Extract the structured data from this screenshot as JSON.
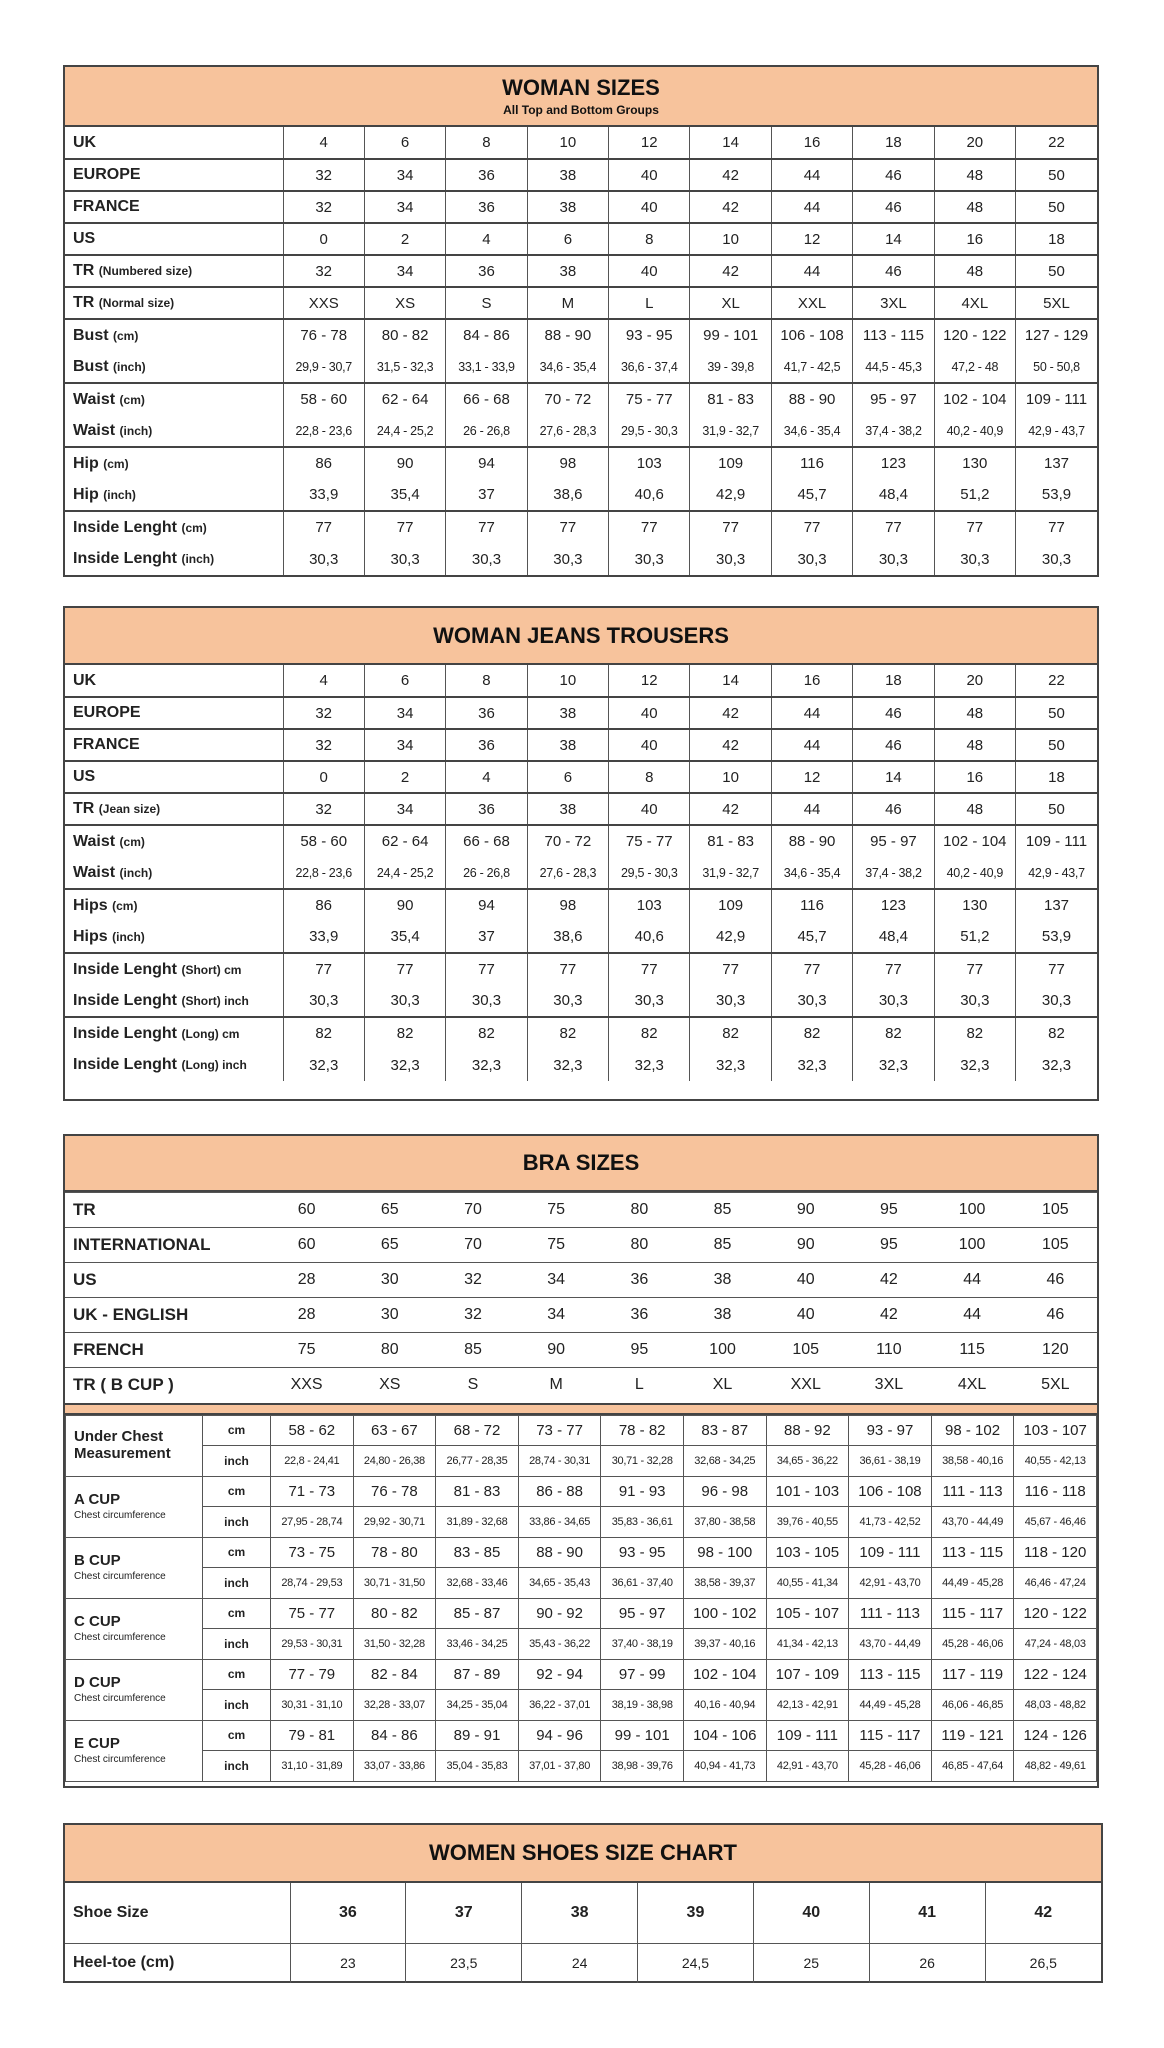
{
  "woman_sizes": {
    "title": "WOMAN SIZES",
    "subtitle": "All Top and Bottom Groups",
    "groups": [
      [
        {
          "label": "UK",
          "unit": "",
          "values": [
            "4",
            "6",
            "8",
            "10",
            "12",
            "14",
            "16",
            "18",
            "20",
            "22"
          ]
        }
      ],
      [
        {
          "label": "EUROPE",
          "unit": "",
          "values": [
            "32",
            "34",
            "36",
            "38",
            "40",
            "42",
            "44",
            "46",
            "48",
            "50"
          ]
        }
      ],
      [
        {
          "label": "FRANCE",
          "unit": "",
          "values": [
            "32",
            "34",
            "36",
            "38",
            "40",
            "42",
            "44",
            "46",
            "48",
            "50"
          ]
        }
      ],
      [
        {
          "label": "US",
          "unit": "",
          "values": [
            "0",
            "2",
            "4",
            "6",
            "8",
            "10",
            "12",
            "14",
            "16",
            "18"
          ]
        }
      ],
      [
        {
          "label": "TR",
          "unit": "(Numbered size)",
          "values": [
            "32",
            "34",
            "36",
            "38",
            "40",
            "42",
            "44",
            "46",
            "48",
            "50"
          ]
        }
      ],
      [
        {
          "label": "TR",
          "unit": "(Normal size)",
          "values": [
            "XXS",
            "XS",
            "S",
            "M",
            "L",
            "XL",
            "XXL",
            "3XL",
            "4XL",
            "5XL"
          ]
        }
      ],
      [
        {
          "label": "Bust",
          "unit": "(cm)",
          "values": [
            "76 - 78",
            "80 - 82",
            "84 - 86",
            "88 - 90",
            "93 - 95",
            "99 - 101",
            "106 - 108",
            "113 - 115",
            "120 - 122",
            "127 - 129"
          ]
        },
        {
          "label": "Bust",
          "unit": "(inch)",
          "small": true,
          "values": [
            "29,9 - 30,7",
            "31,5 - 32,3",
            "33,1 - 33,9",
            "34,6 - 35,4",
            "36,6 - 37,4",
            "39 - 39,8",
            "41,7 - 42,5",
            "44,5 - 45,3",
            "47,2 - 48",
            "50 - 50,8"
          ]
        }
      ],
      [
        {
          "label": "Waist",
          "unit": "(cm)",
          "values": [
            "58 - 60",
            "62 - 64",
            "66 - 68",
            "70 - 72",
            "75 - 77",
            "81 - 83",
            "88 - 90",
            "95 - 97",
            "102 - 104",
            "109 - 111"
          ]
        },
        {
          "label": "Waist",
          "unit": "(inch)",
          "small": true,
          "values": [
            "22,8 - 23,6",
            "24,4 - 25,2",
            "26 - 26,8",
            "27,6 - 28,3",
            "29,5 - 30,3",
            "31,9 - 32,7",
            "34,6 - 35,4",
            "37,4 - 38,2",
            "40,2 - 40,9",
            "42,9 - 43,7"
          ]
        }
      ],
      [
        {
          "label": "Hip",
          "unit": "(cm)",
          "values": [
            "86",
            "90",
            "94",
            "98",
            "103",
            "109",
            "116",
            "123",
            "130",
            "137"
          ]
        },
        {
          "label": "Hip",
          "unit": "(inch)",
          "values": [
            "33,9",
            "35,4",
            "37",
            "38,6",
            "40,6",
            "42,9",
            "45,7",
            "48,4",
            "51,2",
            "53,9"
          ]
        }
      ],
      [
        {
          "label": "Inside Lenght",
          "unit": "(cm)",
          "values": [
            "77",
            "77",
            "77",
            "77",
            "77",
            "77",
            "77",
            "77",
            "77",
            "77"
          ]
        },
        {
          "label": "Inside Lenght",
          "unit": "(inch)",
          "values": [
            "30,3",
            "30,3",
            "30,3",
            "30,3",
            "30,3",
            "30,3",
            "30,3",
            "30,3",
            "30,3",
            "30,3"
          ]
        }
      ]
    ]
  },
  "jeans": {
    "title": "WOMAN JEANS TROUSERS",
    "groups": [
      [
        {
          "label": "UK",
          "unit": "",
          "values": [
            "4",
            "6",
            "8",
            "10",
            "12",
            "14",
            "16",
            "18",
            "20",
            "22"
          ]
        }
      ],
      [
        {
          "label": "EUROPE",
          "unit": "",
          "values": [
            "32",
            "34",
            "36",
            "38",
            "40",
            "42",
            "44",
            "46",
            "48",
            "50"
          ]
        }
      ],
      [
        {
          "label": "FRANCE",
          "unit": "",
          "values": [
            "32",
            "34",
            "36",
            "38",
            "40",
            "42",
            "44",
            "46",
            "48",
            "50"
          ]
        }
      ],
      [
        {
          "label": "US",
          "unit": "",
          "values": [
            "0",
            "2",
            "4",
            "6",
            "8",
            "10",
            "12",
            "14",
            "16",
            "18"
          ]
        }
      ],
      [
        {
          "label": "TR",
          "unit": "(Jean size)",
          "values": [
            "32",
            "34",
            "36",
            "38",
            "40",
            "42",
            "44",
            "46",
            "48",
            "50"
          ]
        }
      ],
      [
        {
          "label": "Waist",
          "unit": "(cm)",
          "values": [
            "58 - 60",
            "62 - 64",
            "66 - 68",
            "70 - 72",
            "75 - 77",
            "81 - 83",
            "88 - 90",
            "95 - 97",
            "102 - 104",
            "109 - 111"
          ]
        },
        {
          "label": "Waist",
          "unit": "(inch)",
          "small": true,
          "values": [
            "22,8 - 23,6",
            "24,4 - 25,2",
            "26 - 26,8",
            "27,6 - 28,3",
            "29,5 - 30,3",
            "31,9 - 32,7",
            "34,6 - 35,4",
            "37,4 - 38,2",
            "40,2 - 40,9",
            "42,9 - 43,7"
          ]
        }
      ],
      [
        {
          "label": "Hips",
          "unit": "(cm)",
          "values": [
            "86",
            "90",
            "94",
            "98",
            "103",
            "109",
            "116",
            "123",
            "130",
            "137"
          ]
        },
        {
          "label": "Hips",
          "unit": "(inch)",
          "values": [
            "33,9",
            "35,4",
            "37",
            "38,6",
            "40,6",
            "42,9",
            "45,7",
            "48,4",
            "51,2",
            "53,9"
          ]
        }
      ],
      [
        {
          "label": "Inside Lenght",
          "unit": "(Short) cm",
          "values": [
            "77",
            "77",
            "77",
            "77",
            "77",
            "77",
            "77",
            "77",
            "77",
            "77"
          ]
        },
        {
          "label": "Inside Lenght",
          "unit": "(Short) inch",
          "values": [
            "30,3",
            "30,3",
            "30,3",
            "30,3",
            "30,3",
            "30,3",
            "30,3",
            "30,3",
            "30,3",
            "30,3"
          ]
        }
      ],
      [
        {
          "label": "Inside Lenght",
          "unit": "(Long) cm",
          "values": [
            "82",
            "82",
            "82",
            "82",
            "82",
            "82",
            "82",
            "82",
            "82",
            "82"
          ]
        },
        {
          "label": "Inside Lenght",
          "unit": "(Long) inch",
          "values": [
            "32,3",
            "32,3",
            "32,3",
            "32,3",
            "32,3",
            "32,3",
            "32,3",
            "32,3",
            "32,3",
            "32,3"
          ]
        }
      ]
    ]
  },
  "bra": {
    "title": "BRA SIZES",
    "sizes": [
      {
        "label": "TR",
        "values": [
          "60",
          "65",
          "70",
          "75",
          "80",
          "85",
          "90",
          "95",
          "100",
          "105"
        ]
      },
      {
        "label": "INTERNATIONAL",
        "values": [
          "60",
          "65",
          "70",
          "75",
          "80",
          "85",
          "90",
          "95",
          "100",
          "105"
        ]
      },
      {
        "label": "US",
        "values": [
          "28",
          "30",
          "32",
          "34",
          "36",
          "38",
          "40",
          "42",
          "44",
          "46"
        ]
      },
      {
        "label": "UK - ENGLISH",
        "values": [
          "28",
          "30",
          "32",
          "34",
          "36",
          "38",
          "40",
          "42",
          "44",
          "46"
        ]
      },
      {
        "label": "FRENCH",
        "values": [
          "75",
          "80",
          "85",
          "90",
          "95",
          "100",
          "105",
          "110",
          "115",
          "120"
        ]
      },
      {
        "label": "TR ( B CUP )",
        "values": [
          "XXS",
          "XS",
          "S",
          "M",
          "L",
          "XL",
          "XXL",
          "3XL",
          "4XL",
          "5XL"
        ]
      }
    ],
    "cups": [
      {
        "label": "Under Chest Measurement",
        "caption": "",
        "cm_unit": "cm",
        "inch_unit": "inch",
        "cm": [
          "58 - 62",
          "63 - 67",
          "68 - 72",
          "73 - 77",
          "78 - 82",
          "83 - 87",
          "88 - 92",
          "93 - 97",
          "98 - 102",
          "103 - 107"
        ],
        "inch": [
          "22,8 - 24,41",
          "24,80 - 26,38",
          "26,77 - 28,35",
          "28,74 - 30,31",
          "30,71 - 32,28",
          "32,68 - 34,25",
          "34,65 - 36,22",
          "36,61 - 38,19",
          "38,58 - 40,16",
          "40,55 - 42,13"
        ]
      },
      {
        "label": "A CUP",
        "caption": "Chest circumference",
        "cm_unit": "cm",
        "inch_unit": "inch",
        "cm": [
          "71 - 73",
          "76 - 78",
          "81 - 83",
          "86 - 88",
          "91 - 93",
          "96 - 98",
          "101 - 103",
          "106 - 108",
          "111 - 113",
          "116 - 118"
        ],
        "inch": [
          "27,95 - 28,74",
          "29,92 - 30,71",
          "31,89 - 32,68",
          "33,86 - 34,65",
          "35,83 - 36,61",
          "37,80 - 38,58",
          "39,76 - 40,55",
          "41,73 - 42,52",
          "43,70 - 44,49",
          "45,67 - 46,46"
        ]
      },
      {
        "label": "B CUP",
        "caption": "Chest circumference",
        "cm_unit": "cm",
        "inch_unit": "inch",
        "cm": [
          "73 - 75",
          "78 - 80",
          "83 - 85",
          "88 - 90",
          "93 - 95",
          "98 - 100",
          "103 - 105",
          "109 - 111",
          "113 - 115",
          "118 - 120"
        ],
        "inch": [
          "28,74 - 29,53",
          "30,71 - 31,50",
          "32,68 - 33,46",
          "34,65 - 35,43",
          "36,61 - 37,40",
          "38,58 - 39,37",
          "40,55 - 41,34",
          "42,91 - 43,70",
          "44,49 - 45,28",
          "46,46 - 47,24"
        ]
      },
      {
        "label": "C CUP",
        "caption": "Chest circumference",
        "cm_unit": "cm",
        "inch_unit": "inch",
        "cm": [
          "75 - 77",
          "80 - 82",
          "85 - 87",
          "90 - 92",
          "95 - 97",
          "100 - 102",
          "105 - 107",
          "111 - 113",
          "115 - 117",
          "120 - 122"
        ],
        "inch": [
          "29,53 - 30,31",
          "31,50 - 32,28",
          "33,46 - 34,25",
          "35,43 - 36,22",
          "37,40 - 38,19",
          "39,37 - 40,16",
          "41,34 - 42,13",
          "43,70 - 44,49",
          "45,28 - 46,06",
          "47,24 - 48,03"
        ]
      },
      {
        "label": "D CUP",
        "caption": "Chest circumference",
        "cm_unit": "cm",
        "inch_unit": "inch",
        "cm": [
          "77 - 79",
          "82 - 84",
          "87 - 89",
          "92 - 94",
          "97 - 99",
          "102 - 104",
          "107 - 109",
          "113 - 115",
          "117 - 119",
          "122 - 124"
        ],
        "inch": [
          "30,31 - 31,10",
          "32,28 - 33,07",
          "34,25 - 35,04",
          "36,22 - 37,01",
          "38,19 - 38,98",
          "40,16 - 40,94",
          "42,13 - 42,91",
          "44,49 - 45,28",
          "46,06 - 46,85",
          "48,03 - 48,82"
        ]
      },
      {
        "label": "E CUP",
        "caption": "Chest circumference",
        "cm_unit": "cm",
        "inch_unit": "inch",
        "cm": [
          "79 - 81",
          "84 - 86",
          "89 - 91",
          "94 - 96",
          "99 - 101",
          "104 - 106",
          "109 - 111",
          "115 - 117",
          "119 - 121",
          "124 - 126"
        ],
        "inch": [
          "31,10 - 31,89",
          "33,07 - 33,86",
          "35,04 - 35,83",
          "37,01 - 37,80",
          "38,98 - 39,76",
          "40,94 - 41,73",
          "42,91 - 43,70",
          "45,28 - 46,06",
          "46,85 - 47,64",
          "48,82 - 49,61"
        ]
      }
    ]
  },
  "shoes": {
    "title": "WOMEN SHOES SIZE CHART",
    "rows": [
      {
        "label": "Shoe Size",
        "bold": true,
        "values": [
          "36",
          "37",
          "38",
          "39",
          "40",
          "41",
          "42"
        ]
      },
      {
        "label": "Heel-toe (cm)",
        "bold": false,
        "values": [
          "23",
          "23,5",
          "24",
          "24,5",
          "25",
          "26",
          "26,5"
        ]
      }
    ]
  },
  "colors": {
    "header": "#f7c39c",
    "border": "#444444"
  }
}
